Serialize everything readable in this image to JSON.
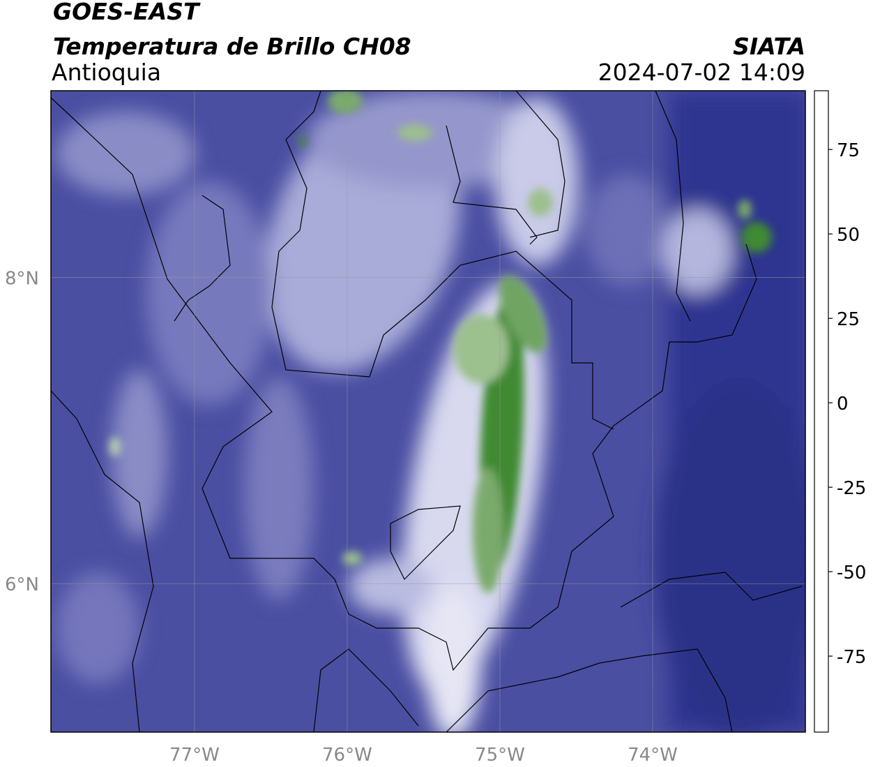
{
  "header": {
    "title": "GOES-EAST",
    "subtitle": "Temperatura de Brillo CH08",
    "region": "Antioquia",
    "source": "SIATA",
    "datetime": "2024-07-02 14:09"
  },
  "map": {
    "xlim": [
      -77.94,
      -73.0
    ],
    "ylim": [
      5.03,
      9.22
    ],
    "xticks": [
      {
        "value": -77,
        "label": "77°W"
      },
      {
        "value": -76,
        "label": "76°W"
      },
      {
        "value": -75,
        "label": "75°W"
      },
      {
        "value": -74,
        "label": "74°W"
      }
    ],
    "yticks": [
      {
        "value": 8,
        "label": "8°N"
      },
      {
        "value": 6,
        "label": "6°N"
      }
    ],
    "grid": true
  },
  "colorbar": {
    "lim": [
      -97.5,
      92.4
    ],
    "ticks": [
      75,
      50,
      25,
      0,
      -25,
      -50,
      -75
    ],
    "colormap": [
      {
        "value": -97.5,
        "color": "#ffffff"
      },
      {
        "value": -92,
        "color": "#ffffff"
      },
      {
        "value": -92,
        "color": "#00e8d8"
      },
      {
        "value": -80,
        "color": "#2aaa8a"
      },
      {
        "value": -70,
        "color": "#2f7a2a"
      },
      {
        "value": -60,
        "color": "#6aa05a"
      },
      {
        "value": -54,
        "color": "#d8e6d2"
      },
      {
        "value": -50,
        "color": "#ffffff"
      },
      {
        "value": -42,
        "color": "#b8b9de"
      },
      {
        "value": -34,
        "color": "#5a5fb0"
      },
      {
        "value": -28,
        "color": "#1a1f86"
      },
      {
        "value": -24,
        "color": "#0a0a50"
      },
      {
        "value": -20,
        "color": "#5a5a3a"
      },
      {
        "value": -12,
        "color": "#e8e000"
      },
      {
        "value": -4,
        "color": "#ffa000"
      },
      {
        "value": 8,
        "color": "#ff1000"
      },
      {
        "value": 8,
        "color": "#000000"
      },
      {
        "value": 92.4,
        "color": "#000000"
      }
    ]
  }
}
